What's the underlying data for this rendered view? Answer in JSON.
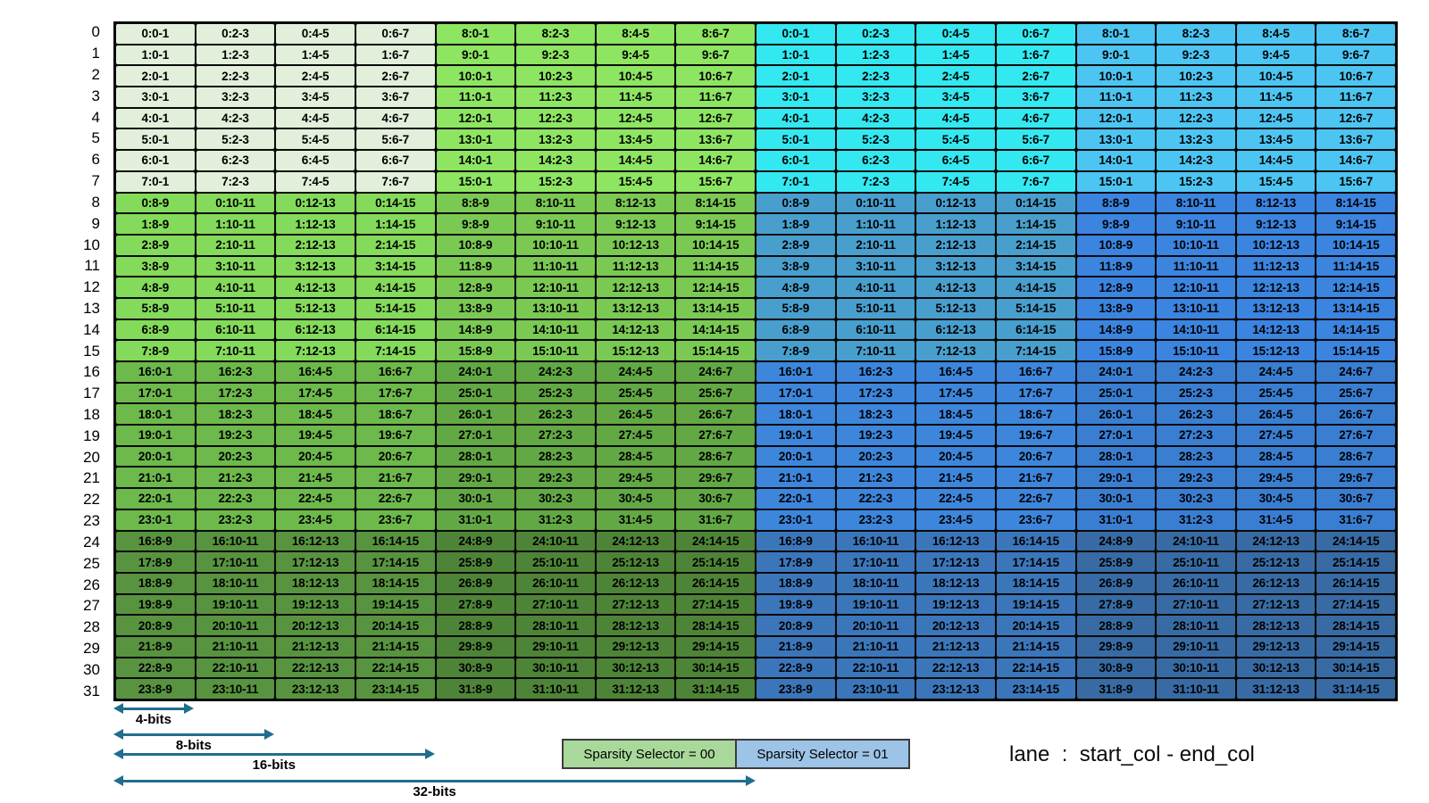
{
  "table": {
    "row_labels": [
      "0",
      "1",
      "2",
      "3",
      "4",
      "5",
      "6",
      "7",
      "8",
      "9",
      "10",
      "11",
      "12",
      "13",
      "14",
      "15",
      "16",
      "17",
      "18",
      "19",
      "20",
      "21",
      "22",
      "23",
      "24",
      "25",
      "26",
      "27",
      "28",
      "29",
      "30",
      "31"
    ],
    "rows": [
      [
        "0:0-1",
        "0:2-3",
        "0:4-5",
        "0:6-7",
        "8:0-1",
        "8:2-3",
        "8:4-5",
        "8:6-7",
        "0:0-1",
        "0:2-3",
        "0:4-5",
        "0:6-7",
        "8:0-1",
        "8:2-3",
        "8:4-5",
        "8:6-7"
      ],
      [
        "1:0-1",
        "1:2-3",
        "1:4-5",
        "1:6-7",
        "9:0-1",
        "9:2-3",
        "9:4-5",
        "9:6-7",
        "1:0-1",
        "1:2-3",
        "1:4-5",
        "1:6-7",
        "9:0-1",
        "9:2-3",
        "9:4-5",
        "9:6-7"
      ],
      [
        "2:0-1",
        "2:2-3",
        "2:4-5",
        "2:6-7",
        "10:0-1",
        "10:2-3",
        "10:4-5",
        "10:6-7",
        "2:0-1",
        "2:2-3",
        "2:4-5",
        "2:6-7",
        "10:0-1",
        "10:2-3",
        "10:4-5",
        "10:6-7"
      ],
      [
        "3:0-1",
        "3:2-3",
        "3:4-5",
        "3:6-7",
        "11:0-1",
        "11:2-3",
        "11:4-5",
        "11:6-7",
        "3:0-1",
        "3:2-3",
        "3:4-5",
        "3:6-7",
        "11:0-1",
        "11:2-3",
        "11:4-5",
        "11:6-7"
      ],
      [
        "4:0-1",
        "4:2-3",
        "4:4-5",
        "4:6-7",
        "12:0-1",
        "12:2-3",
        "12:4-5",
        "12:6-7",
        "4:0-1",
        "4:2-3",
        "4:4-5",
        "4:6-7",
        "12:0-1",
        "12:2-3",
        "12:4-5",
        "12:6-7"
      ],
      [
        "5:0-1",
        "5:2-3",
        "5:4-5",
        "5:6-7",
        "13:0-1",
        "13:2-3",
        "13:4-5",
        "13:6-7",
        "5:0-1",
        "5:2-3",
        "5:4-5",
        "5:6-7",
        "13:0-1",
        "13:2-3",
        "13:4-5",
        "13:6-7"
      ],
      [
        "6:0-1",
        "6:2-3",
        "6:4-5",
        "6:6-7",
        "14:0-1",
        "14:2-3",
        "14:4-5",
        "14:6-7",
        "6:0-1",
        "6:2-3",
        "6:4-5",
        "6:6-7",
        "14:0-1",
        "14:2-3",
        "14:4-5",
        "14:6-7"
      ],
      [
        "7:0-1",
        "7:2-3",
        "7:4-5",
        "7:6-7",
        "15:0-1",
        "15:2-3",
        "15:4-5",
        "15:6-7",
        "7:0-1",
        "7:2-3",
        "7:4-5",
        "7:6-7",
        "15:0-1",
        "15:2-3",
        "15:4-5",
        "15:6-7"
      ],
      [
        "0:8-9",
        "0:10-11",
        "0:12-13",
        "0:14-15",
        "8:8-9",
        "8:10-11",
        "8:12-13",
        "8:14-15",
        "0:8-9",
        "0:10-11",
        "0:12-13",
        "0:14-15",
        "8:8-9",
        "8:10-11",
        "8:12-13",
        "8:14-15"
      ],
      [
        "1:8-9",
        "1:10-11",
        "1:12-13",
        "1:14-15",
        "9:8-9",
        "9:10-11",
        "9:12-13",
        "9:14-15",
        "1:8-9",
        "1:10-11",
        "1:12-13",
        "1:14-15",
        "9:8-9",
        "9:10-11",
        "9:12-13",
        "9:14-15"
      ],
      [
        "2:8-9",
        "2:10-11",
        "2:12-13",
        "2:14-15",
        "10:8-9",
        "10:10-11",
        "10:12-13",
        "10:14-15",
        "2:8-9",
        "2:10-11",
        "2:12-13",
        "2:14-15",
        "10:8-9",
        "10:10-11",
        "10:12-13",
        "10:14-15"
      ],
      [
        "3:8-9",
        "3:10-11",
        "3:12-13",
        "3:14-15",
        "11:8-9",
        "11:10-11",
        "11:12-13",
        "11:14-15",
        "3:8-9",
        "3:10-11",
        "3:12-13",
        "3:14-15",
        "11:8-9",
        "11:10-11",
        "11:12-13",
        "11:14-15"
      ],
      [
        "4:8-9",
        "4:10-11",
        "4:12-13",
        "4:14-15",
        "12:8-9",
        "12:10-11",
        "12:12-13",
        "12:14-15",
        "4:8-9",
        "4:10-11",
        "4:12-13",
        "4:14-15",
        "12:8-9",
        "12:10-11",
        "12:12-13",
        "12:14-15"
      ],
      [
        "5:8-9",
        "5:10-11",
        "5:12-13",
        "5:14-15",
        "13:8-9",
        "13:10-11",
        "13:12-13",
        "13:14-15",
        "5:8-9",
        "5:10-11",
        "5:12-13",
        "5:14-15",
        "13:8-9",
        "13:10-11",
        "13:12-13",
        "13:14-15"
      ],
      [
        "6:8-9",
        "6:10-11",
        "6:12-13",
        "6:14-15",
        "14:8-9",
        "14:10-11",
        "14:12-13",
        "14:14-15",
        "6:8-9",
        "6:10-11",
        "6:12-13",
        "6:14-15",
        "14:8-9",
        "14:10-11",
        "14:12-13",
        "14:14-15"
      ],
      [
        "7:8-9",
        "7:10-11",
        "7:12-13",
        "7:14-15",
        "15:8-9",
        "15:10-11",
        "15:12-13",
        "15:14-15",
        "7:8-9",
        "7:10-11",
        "7:12-13",
        "7:14-15",
        "15:8-9",
        "15:10-11",
        "15:12-13",
        "15:14-15"
      ],
      [
        "16:0-1",
        "16:2-3",
        "16:4-5",
        "16:6-7",
        "24:0-1",
        "24:2-3",
        "24:4-5",
        "24:6-7",
        "16:0-1",
        "16:2-3",
        "16:4-5",
        "16:6-7",
        "24:0-1",
        "24:2-3",
        "24:4-5",
        "24:6-7"
      ],
      [
        "17:0-1",
        "17:2-3",
        "17:4-5",
        "17:6-7",
        "25:0-1",
        "25:2-3",
        "25:4-5",
        "25:6-7",
        "17:0-1",
        "17:2-3",
        "17:4-5",
        "17:6-7",
        "25:0-1",
        "25:2-3",
        "25:4-5",
        "25:6-7"
      ],
      [
        "18:0-1",
        "18:2-3",
        "18:4-5",
        "18:6-7",
        "26:0-1",
        "26:2-3",
        "26:4-5",
        "26:6-7",
        "18:0-1",
        "18:2-3",
        "18:4-5",
        "18:6-7",
        "26:0-1",
        "26:2-3",
        "26:4-5",
        "26:6-7"
      ],
      [
        "19:0-1",
        "19:2-3",
        "19:4-5",
        "19:6-7",
        "27:0-1",
        "27:2-3",
        "27:4-5",
        "27:6-7",
        "19:0-1",
        "19:2-3",
        "19:4-5",
        "19:6-7",
        "27:0-1",
        "27:2-3",
        "27:4-5",
        "27:6-7"
      ],
      [
        "20:0-1",
        "20:2-3",
        "20:4-5",
        "20:6-7",
        "28:0-1",
        "28:2-3",
        "28:4-5",
        "28:6-7",
        "20:0-1",
        "20:2-3",
        "20:4-5",
        "20:6-7",
        "28:0-1",
        "28:2-3",
        "28:4-5",
        "28:6-7"
      ],
      [
        "21:0-1",
        "21:2-3",
        "21:4-5",
        "21:6-7",
        "29:0-1",
        "29:2-3",
        "29:4-5",
        "29:6-7",
        "21:0-1",
        "21:2-3",
        "21:4-5",
        "21:6-7",
        "29:0-1",
        "29:2-3",
        "29:4-5",
        "29:6-7"
      ],
      [
        "22:0-1",
        "22:2-3",
        "22:4-5",
        "22:6-7",
        "30:0-1",
        "30:2-3",
        "30:4-5",
        "30:6-7",
        "22:0-1",
        "22:2-3",
        "22:4-5",
        "22:6-7",
        "30:0-1",
        "30:2-3",
        "30:4-5",
        "30:6-7"
      ],
      [
        "23:0-1",
        "23:2-3",
        "23:4-5",
        "23:6-7",
        "31:0-1",
        "31:2-3",
        "31:4-5",
        "31:6-7",
        "23:0-1",
        "23:2-3",
        "23:4-5",
        "23:6-7",
        "31:0-1",
        "31:2-3",
        "31:4-5",
        "31:6-7"
      ],
      [
        "16:8-9",
        "16:10-11",
        "16:12-13",
        "16:14-15",
        "24:8-9",
        "24:10-11",
        "24:12-13",
        "24:14-15",
        "16:8-9",
        "16:10-11",
        "16:12-13",
        "16:14-15",
        "24:8-9",
        "24:10-11",
        "24:12-13",
        "24:14-15"
      ],
      [
        "17:8-9",
        "17:10-11",
        "17:12-13",
        "17:14-15",
        "25:8-9",
        "25:10-11",
        "25:12-13",
        "25:14-15",
        "17:8-9",
        "17:10-11",
        "17:12-13",
        "17:14-15",
        "25:8-9",
        "25:10-11",
        "25:12-13",
        "25:14-15"
      ],
      [
        "18:8-9",
        "18:10-11",
        "18:12-13",
        "18:14-15",
        "26:8-9",
        "26:10-11",
        "26:12-13",
        "26:14-15",
        "18:8-9",
        "18:10-11",
        "18:12-13",
        "18:14-15",
        "26:8-9",
        "26:10-11",
        "26:12-13",
        "26:14-15"
      ],
      [
        "19:8-9",
        "19:10-11",
        "19:12-13",
        "19:14-15",
        "27:8-9",
        "27:10-11",
        "27:12-13",
        "27:14-15",
        "19:8-9",
        "19:10-11",
        "19:12-13",
        "19:14-15",
        "27:8-9",
        "27:10-11",
        "27:12-13",
        "27:14-15"
      ],
      [
        "20:8-9",
        "20:10-11",
        "20:12-13",
        "20:14-15",
        "28:8-9",
        "28:10-11",
        "28:12-13",
        "28:14-15",
        "20:8-9",
        "20:10-11",
        "20:12-13",
        "20:14-15",
        "28:8-9",
        "28:10-11",
        "28:12-13",
        "28:14-15"
      ],
      [
        "21:8-9",
        "21:10-11",
        "21:12-13",
        "21:14-15",
        "29:8-9",
        "29:10-11",
        "29:12-13",
        "29:14-15",
        "21:8-9",
        "21:10-11",
        "21:12-13",
        "21:14-15",
        "29:8-9",
        "29:10-11",
        "29:12-13",
        "29:14-15"
      ],
      [
        "22:8-9",
        "22:10-11",
        "22:12-13",
        "22:14-15",
        "30:8-9",
        "30:10-11",
        "30:12-13",
        "30:14-15",
        "22:8-9",
        "22:10-11",
        "22:12-13",
        "22:14-15",
        "30:8-9",
        "30:10-11",
        "30:12-13",
        "30:14-15"
      ],
      [
        "23:8-9",
        "23:10-11",
        "23:12-13",
        "23:14-15",
        "31:8-9",
        "31:10-11",
        "31:12-13",
        "31:14-15",
        "23:8-9",
        "23:10-11",
        "23:12-13",
        "23:14-15",
        "31:8-9",
        "31:10-11",
        "31:12-13",
        "31:14-15"
      ]
    ]
  },
  "colors": {
    "green_bands": [
      [
        "#e2efda",
        "#8de561"
      ],
      [
        "#84da5a",
        "#7ac953"
      ],
      [
        "#6db94c",
        "#62a844"
      ],
      [
        "#589340",
        "#4e8437"
      ]
    ],
    "blue_bands": [
      [
        "#33e8f0",
        "#4cc5f2"
      ],
      [
        "#489fcd",
        "#3b84e0"
      ],
      [
        "#3d86dc",
        "#3a7ed2"
      ],
      [
        "#3c76ba",
        "#386ba3"
      ]
    ],
    "cell_text": "#000000",
    "border": "#0a0a0a",
    "arrow": "#1f6e8e"
  },
  "annotations": {
    "bit_arrows": [
      {
        "label": "4-bits",
        "cells": 1
      },
      {
        "label": "8-bits",
        "cells": 2
      },
      {
        "label": "16-bits",
        "cells": 4
      },
      {
        "label": "32-bits",
        "cells": 8
      }
    ]
  },
  "legend": {
    "items": [
      {
        "label": "Sparsity Selector = 00",
        "color": "#a9d99a"
      },
      {
        "label": "Sparsity Selector = 01",
        "color": "#9dc3e6"
      }
    ]
  },
  "caption": "lane  :  start_col - end_col"
}
